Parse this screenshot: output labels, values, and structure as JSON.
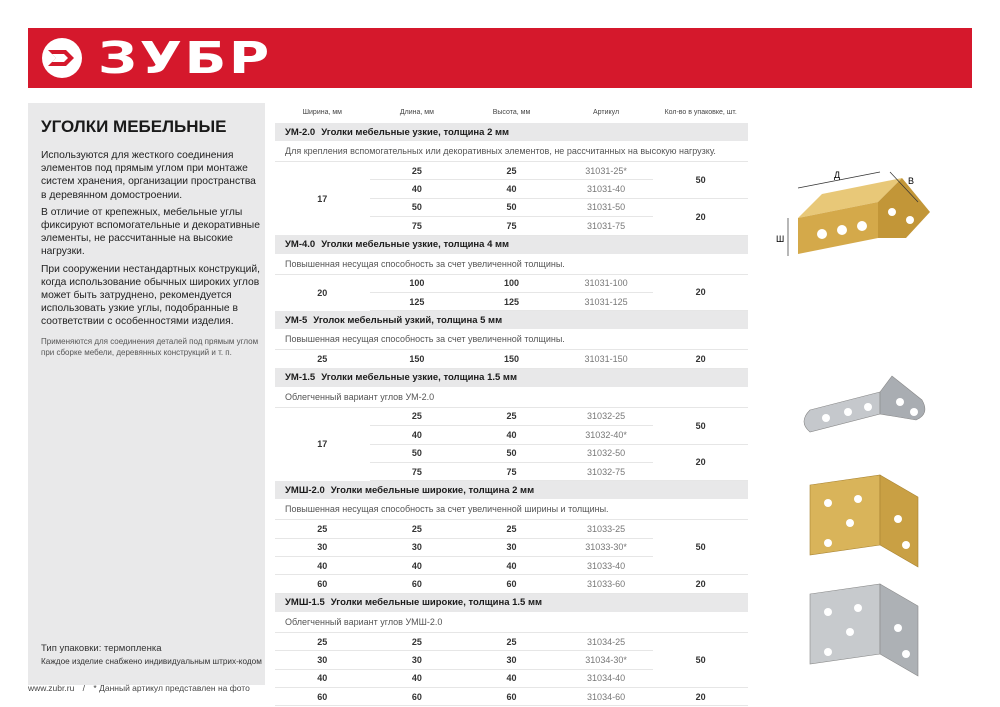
{
  "brand": {
    "name": "ЗУБР",
    "color": "#d5182c",
    "logo_icon": "zubr-arrow-icon"
  },
  "panel": {
    "title": "УГОЛКИ МЕБЕЛЬНЫЕ",
    "paragraphs": [
      "Используются для жесткого соединения элементов под прямым углом при монтаже систем хранения, организации пространства в деревянном домостроении.",
      "В отличие от крепежных, мебельные углы фиксируют вспомогательные и декоративные элементы, не рассчитанные на высокие нагрузки.",
      "При сооружении нестандартных конструкций, когда использование обычных широких углов может быть затруднено, рекомендуется использовать узкие углы, подобранные в соответствии с особенностями изделия."
    ],
    "note": "Применяются для соединения деталей под прямым углом при сборке мебели, деревянных конструкций и т. п.",
    "packaging": "Тип упаковки: термопленка",
    "barcode": "Каждое изделие снабжено индивидуальным штрих-кодом"
  },
  "footer": {
    "site": "www.zubr.ru",
    "sep": "/",
    "note": "* Данный артикул представлен на фото"
  },
  "table": {
    "headers": [
      "Ширина, мм",
      "Длина, мм",
      "Высота, мм",
      "Артикул",
      "Кол-во в упаковке, шт."
    ],
    "sections": [
      {
        "code": "УМ-2.0",
        "title": "Уголки мебельные узкие, толщина 2 мм",
        "desc": "Для крепления вспомогательных или декоративных элементов, не рассчитанных на высокую нагрузку.",
        "width": "17",
        "rows": [
          [
            "25",
            "25",
            "31031-25*"
          ],
          [
            "40",
            "40",
            "31031-40"
          ],
          [
            "50",
            "50",
            "31031-50"
          ],
          [
            "75",
            "75",
            "31031-75"
          ]
        ],
        "qty": [
          [
            "50",
            2
          ],
          [
            "20",
            2
          ]
        ]
      },
      {
        "code": "УМ-4.0",
        "title": "Уголки мебельные узкие, толщина 4 мм",
        "desc": "Повышенная несущая способность за счет увеличенной толщины.",
        "width": "20",
        "rows": [
          [
            "100",
            "100",
            "31031-100"
          ],
          [
            "125",
            "125",
            "31031-125"
          ]
        ],
        "qty": [
          [
            "20",
            2
          ]
        ]
      },
      {
        "code": "УМ-5",
        "title": "Уголок мебельный узкий, толщина 5 мм",
        "desc": "Повышенная несущая способность за счет увеличенной толщины.",
        "width": "25",
        "rows": [
          [
            "150",
            "150",
            "31031-150"
          ]
        ],
        "qty": [
          [
            "20",
            1
          ]
        ]
      },
      {
        "code": "УМ-1.5",
        "title": "Уголки мебельные узкие, толщина 1.5 мм",
        "desc": "Облегченный вариант углов УМ-2.0",
        "width": "17",
        "rows": [
          [
            "25",
            "25",
            "31032-25"
          ],
          [
            "40",
            "40",
            "31032-40*"
          ],
          [
            "50",
            "50",
            "31032-50"
          ],
          [
            "75",
            "75",
            "31032-75"
          ]
        ],
        "qty": [
          [
            "50",
            2
          ],
          [
            "20",
            2
          ]
        ]
      },
      {
        "code": "УМШ-2.0",
        "title": "Уголки мебельные широкие, толщина 2 мм",
        "desc": "Повышенная несущая способность за счет увеличенной ширины и толщины.",
        "rows": [
          [
            "25",
            "25",
            "25",
            "31033-25"
          ],
          [
            "30",
            "30",
            "30",
            "31033-30*"
          ],
          [
            "40",
            "40",
            "40",
            "31033-40"
          ],
          [
            "60",
            "60",
            "60",
            "31033-60"
          ]
        ],
        "qty": [
          [
            "50",
            3
          ],
          [
            "20",
            1
          ]
        ]
      },
      {
        "code": "УМШ-1.5",
        "title": "Уголки мебельные широкие, толщина 1.5 мм",
        "desc": "Облегченный вариант углов УМШ-2.0",
        "rows": [
          [
            "25",
            "25",
            "25",
            "31034-25"
          ],
          [
            "30",
            "30",
            "30",
            "31034-30*"
          ],
          [
            "40",
            "40",
            "40",
            "31034-40"
          ],
          [
            "60",
            "60",
            "60",
            "31034-60"
          ]
        ],
        "qty": [
          [
            "50",
            3
          ],
          [
            "20",
            1
          ]
        ]
      }
    ]
  },
  "diagram_labels": {
    "length": "Д",
    "height": "В",
    "width": "Ш"
  },
  "colors": {
    "brass": "#d4a94a",
    "steel": "#b9bcc0",
    "panel": "#e9e9ea"
  }
}
